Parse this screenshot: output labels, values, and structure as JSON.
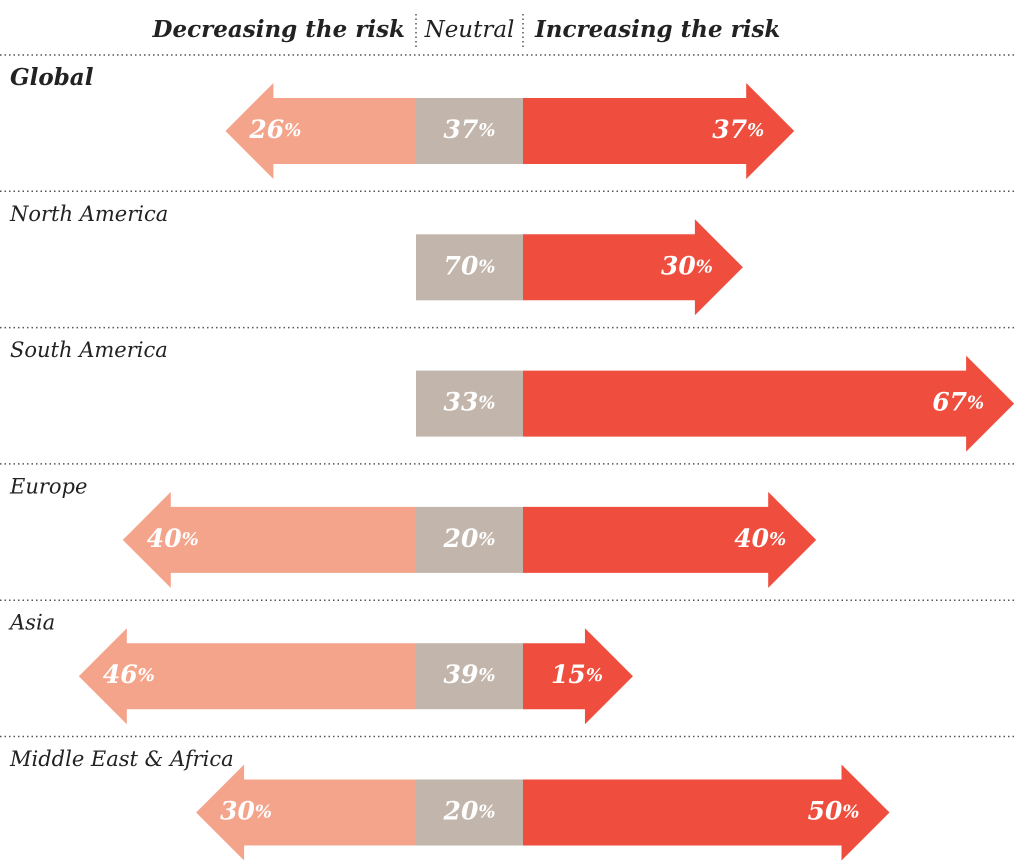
{
  "chart_data": {
    "type": "diverging_arrow",
    "categories": [
      "Global",
      "North America",
      "South America",
      "Europe",
      "Asia",
      "Middle East & Africa"
    ],
    "series": [
      {
        "name": "Decreasing the risk",
        "color": "#f5a48c",
        "values": [
          26,
          null,
          null,
          40,
          46,
          30
        ],
        "value_labels": [
          "26%",
          null,
          null,
          "40%",
          "46%",
          "30%"
        ]
      },
      {
        "name": "Neutral",
        "color": "#c2b5ab",
        "values": [
          37,
          70,
          33,
          20,
          39,
          20
        ],
        "value_labels": [
          "37%",
          "70%",
          "33%",
          "20%",
          "39%",
          "20%"
        ]
      },
      {
        "name": "Increasing the risk",
        "color": "#ef4d3d",
        "values": [
          37,
          30,
          67,
          40,
          15,
          50
        ],
        "value_labels": [
          "37%",
          "30%",
          "67%",
          "40%",
          "15%",
          "50%"
        ]
      }
    ]
  }
}
